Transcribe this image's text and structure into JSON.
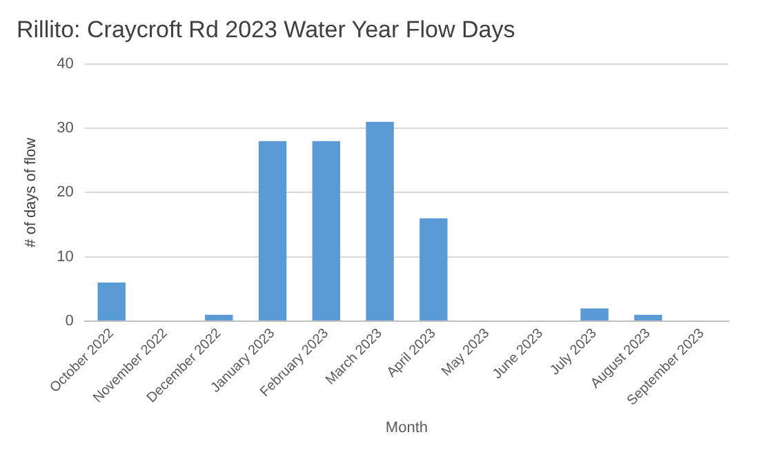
{
  "chart_data": {
    "type": "bar",
    "title": "Rillito: Craycroft Rd 2023 Water Year Flow Days",
    "xlabel": "Month",
    "ylabel": "# of days of flow",
    "categories": [
      "October 2022",
      "November 2022",
      "December 2022",
      "January 2023",
      "February 2023",
      "March 2023",
      "April 2023",
      "May 2023",
      "June 2023",
      "July 2023",
      "August 2023",
      "September 2023"
    ],
    "values": [
      6,
      0,
      1,
      28,
      28,
      31,
      16,
      0,
      0,
      2,
      1,
      0
    ],
    "color": "#5b9bd5",
    "ylim": [
      0,
      40
    ],
    "yticks": [
      0,
      10,
      20,
      30,
      40
    ],
    "grid": "y",
    "legend": false
  }
}
